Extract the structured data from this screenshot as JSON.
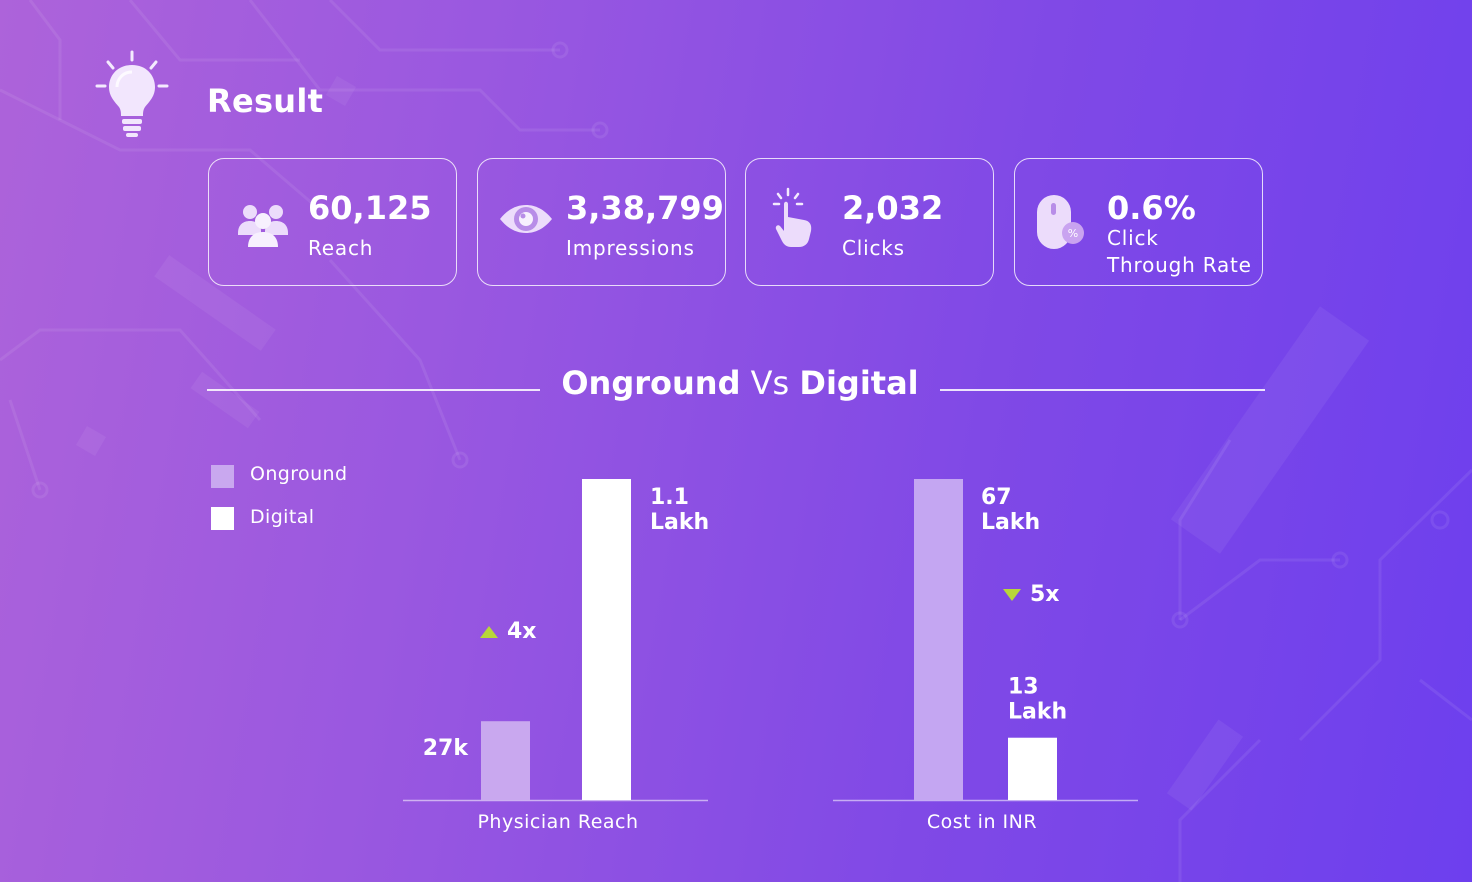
{
  "header": {
    "title": "Result"
  },
  "stats": [
    {
      "value": "60,125",
      "label": "Reach",
      "icon": "people-icon"
    },
    {
      "value": "3,38,799",
      "label": "Impressions",
      "icon": "eye-icon"
    },
    {
      "value": "2,032",
      "label": "Clicks",
      "icon": "tap-hand-icon"
    },
    {
      "value": "0.6%",
      "label_line1": "Click",
      "label_line2": "Through Rate",
      "icon": "mouse-percent-icon"
    }
  ],
  "comparison": {
    "title_part1": "Onground",
    "title_part2": "Vs",
    "title_part3": "Digital"
  },
  "legend": [
    {
      "label": "Onground",
      "color": "#c9a8ef"
    },
    {
      "label": "Digital",
      "color": "#ffffff"
    }
  ],
  "colors": {
    "onground": "#c9a8ef",
    "digital": "#ffffff",
    "cost_onground": "#c4a6f2",
    "arrow": "#b8d63a"
  },
  "chart_data": [
    {
      "type": "bar",
      "xlabel": "Physician Reach",
      "categories": [
        "Onground",
        "Digital"
      ],
      "values": [
        27000,
        110000
      ],
      "data_labels": [
        [
          "27k"
        ],
        [
          "1.1",
          "Lakh"
        ]
      ],
      "change": {
        "label": "4x",
        "direction": "up"
      },
      "ylim": [
        0,
        110000
      ]
    },
    {
      "type": "bar",
      "xlabel": "Cost in INR",
      "categories": [
        "Onground",
        "Digital"
      ],
      "values": [
        6700000,
        1300000
      ],
      "data_labels": [
        [
          "67",
          "Lakh"
        ],
        [
          "13",
          "Lakh"
        ]
      ],
      "change": {
        "label": "5x",
        "direction": "down"
      },
      "ylim": [
        0,
        6700000
      ]
    }
  ]
}
